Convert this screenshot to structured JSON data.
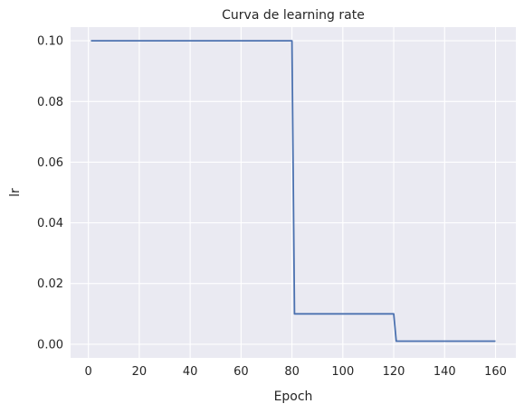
{
  "chart_data": {
    "type": "line",
    "title": "Curva de learning rate",
    "xlabel": "Epoch",
    "ylabel": "lr",
    "xlim": [
      -7,
      168
    ],
    "ylim": [
      -0.0045,
      0.1045
    ],
    "x_ticks": [
      0,
      20,
      40,
      60,
      80,
      100,
      120,
      140,
      160
    ],
    "y_ticks": [
      0.0,
      0.02,
      0.04,
      0.06,
      0.08,
      0.1
    ],
    "y_tick_labels": [
      "0.00",
      "0.02",
      "0.04",
      "0.06",
      "0.08",
      "0.10"
    ],
    "grid": true,
    "background": "#eaeaf2",
    "grid_color": "#ffffff",
    "series": [
      {
        "color": "#4c72b0",
        "x": [
          1,
          80,
          81,
          120,
          121,
          160
        ],
        "y": [
          0.1,
          0.1,
          0.01,
          0.01,
          0.001,
          0.001
        ]
      }
    ]
  }
}
